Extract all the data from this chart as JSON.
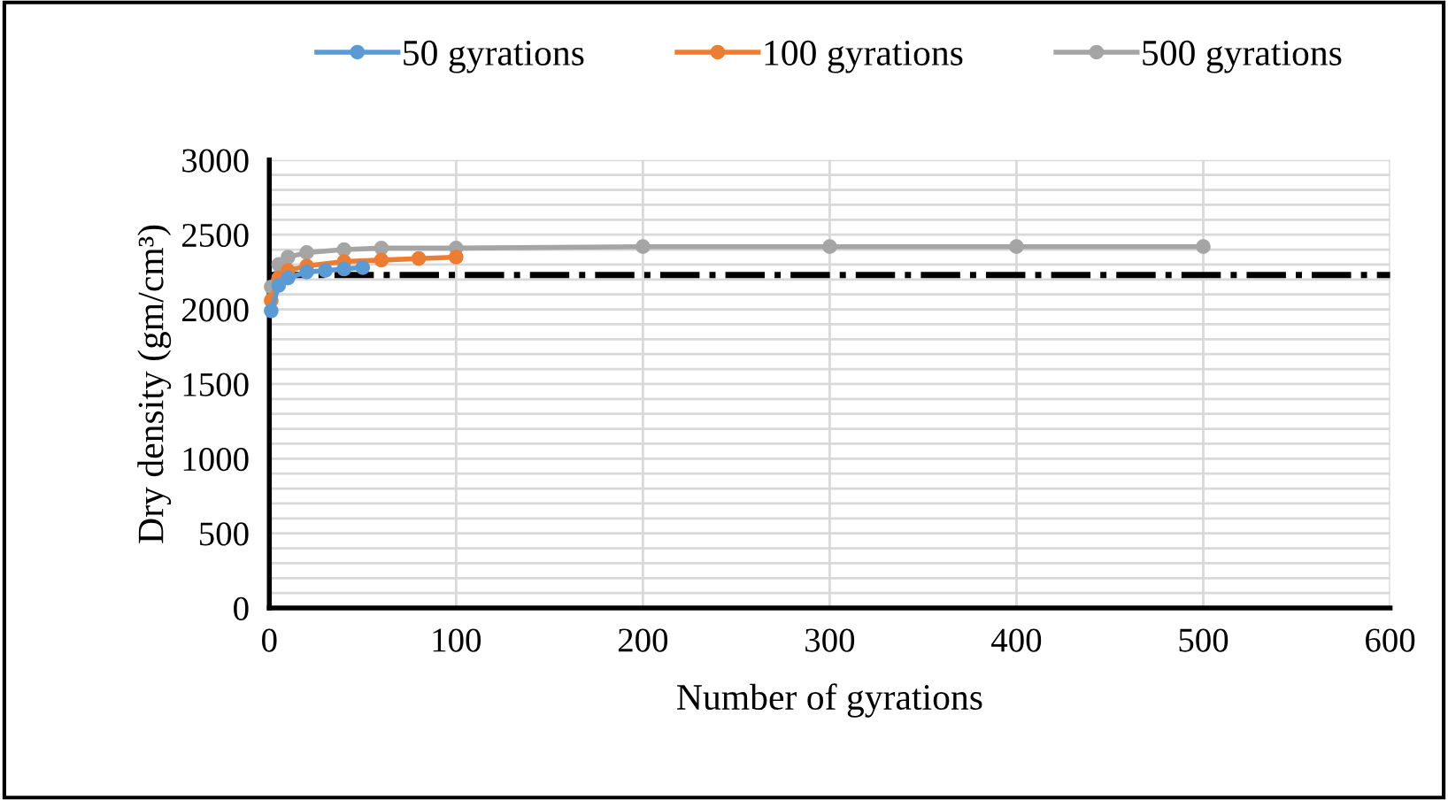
{
  "chart_data": {
    "type": "line",
    "xlabel": "Number of gyrations",
    "ylabel": "Dry density (gm/cm³)",
    "series": [
      {
        "name": "50 gyrations",
        "color": "#5b9bd5",
        "x": [
          1,
          5,
          10,
          20,
          30,
          40,
          50
        ],
        "values": [
          1990,
          2160,
          2210,
          2250,
          2260,
          2270,
          2280
        ]
      },
      {
        "name": "100 gyrations",
        "color": "#ed7d31",
        "x": [
          1,
          5,
          10,
          20,
          40,
          60,
          80,
          100
        ],
        "values": [
          2060,
          2210,
          2260,
          2290,
          2320,
          2330,
          2340,
          2350
        ]
      },
      {
        "name": "500 gyrations",
        "color": "#a5a5a5",
        "x": [
          1,
          5,
          10,
          20,
          40,
          60,
          100,
          200,
          300,
          400,
          500
        ],
        "values": [
          2150,
          2300,
          2350,
          2380,
          2400,
          2410,
          2410,
          2420,
          2420,
          2420,
          2420
        ]
      }
    ],
    "xlim": [
      0,
      600
    ],
    "xticks": [
      0,
      100,
      200,
      300,
      400,
      500,
      600
    ],
    "ylim": [
      0,
      3000
    ],
    "yticks": [
      0,
      {
        "value": 100,
        "label": null
      },
      {
        "value": 200,
        "label": null
      },
      {
        "value": 300,
        "label": null
      },
      {
        "value": 400,
        "label": null
      },
      500,
      {
        "value": 600,
        "label": null
      },
      {
        "value": 700,
        "label": null
      },
      {
        "value": 800,
        "label": null
      },
      {
        "value": 900,
        "label": null
      },
      1000,
      {
        "value": 1100,
        "label": null
      },
      {
        "value": 1200,
        "label": null
      },
      {
        "value": 1300,
        "label": null
      },
      {
        "value": 1400,
        "label": null
      },
      1500,
      {
        "value": 1600,
        "label": null
      },
      {
        "value": 1700,
        "label": null
      },
      {
        "value": 1800,
        "label": null
      },
      {
        "value": 1900,
        "label": null
      },
      2000,
      {
        "value": 2100,
        "label": null
      },
      {
        "value": 2200,
        "label": null
      },
      {
        "value": 2300,
        "label": null
      },
      {
        "value": 2400,
        "label": null
      },
      2500,
      {
        "value": 2600,
        "label": null
      },
      {
        "value": 2700,
        "label": null
      },
      {
        "value": 2800,
        "label": null
      },
      {
        "value": 2900,
        "label": null
      },
      3000
    ],
    "ref_lines": [
      {
        "axis": "y",
        "value": 2230,
        "color": "#000000",
        "line_style": "dashdot"
      }
    ],
    "grid": true,
    "legend": "top",
    "marker": "circle",
    "line_style": "solid"
  }
}
